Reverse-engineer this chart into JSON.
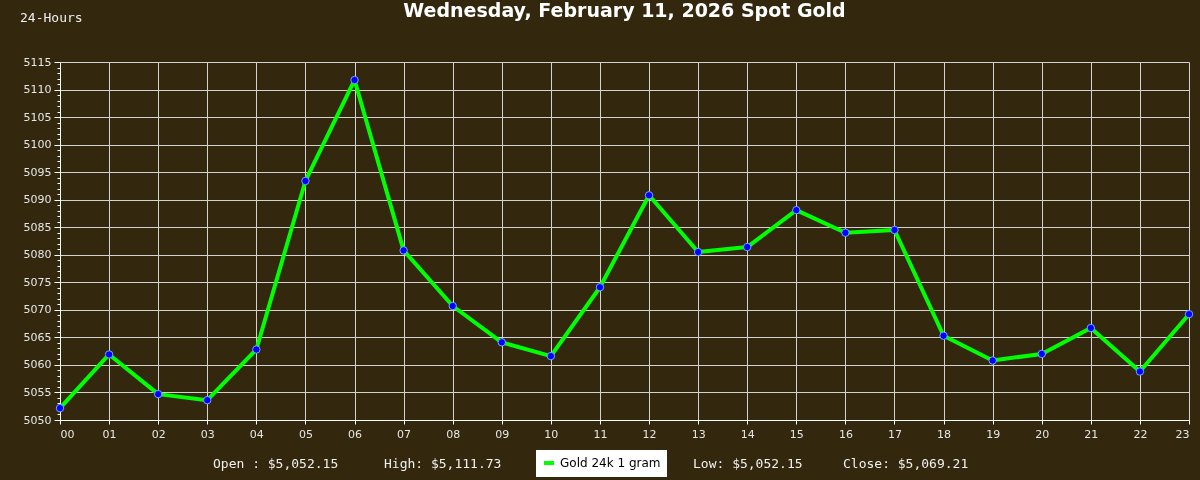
{
  "chart_data": {
    "type": "line",
    "title": "Wednesday, February 11, 2026 Spot Gold",
    "annotations": [
      "24-Hours",
      "Open : $5,052.15",
      "High: $5,111.73",
      "Low: $5,052.15",
      "Close: $5,069.21"
    ],
    "categories": [
      "00",
      "01",
      "02",
      "03",
      "04",
      "05",
      "06",
      "07",
      "08",
      "09",
      "10",
      "11",
      "12",
      "13",
      "14",
      "15",
      "16",
      "17",
      "18",
      "19",
      "20",
      "21",
      "22",
      "23"
    ],
    "series": [
      {
        "name": "Gold 24k 1 gram",
        "color": "#00ff00",
        "values": [
          5052.15,
          5061.9,
          5054.7,
          5053.6,
          5062.8,
          5093.4,
          5111.73,
          5080.8,
          5070.7,
          5064.1,
          5061.6,
          5074.1,
          5090.8,
          5080.5,
          5081.4,
          5088.1,
          5084.0,
          5084.5,
          5065.3,
          5060.8,
          5062.0,
          5066.7,
          5058.8,
          5069.21
        ]
      }
    ],
    "ylim": [
      5050,
      5115
    ],
    "yticks": [
      5050,
      {
        "value": 5051,
        "label": null
      },
      {
        "value": 5052,
        "label": null
      },
      {
        "value": 5053,
        "label": null
      },
      {
        "value": 5054,
        "label": null
      },
      5055,
      {
        "value": 5056,
        "label": null
      },
      {
        "value": 5057,
        "label": null
      },
      {
        "value": 5058,
        "label": null
      },
      {
        "value": 5059,
        "label": null
      },
      5060,
      {
        "value": 5061,
        "label": null
      },
      {
        "value": 5062,
        "label": null
      },
      {
        "value": 5063,
        "label": null
      },
      {
        "value": 5064,
        "label": null
      },
      5065,
      {
        "value": 5066,
        "label": null
      },
      {
        "value": 5067,
        "label": null
      },
      {
        "value": 5068,
        "label": null
      },
      {
        "value": 5069,
        "label": null
      },
      5070,
      {
        "value": 5071,
        "label": null
      },
      {
        "value": 5072,
        "label": null
      },
      {
        "value": 5073,
        "label": null
      },
      {
        "value": 5074,
        "label": null
      },
      5075,
      {
        "value": 5076,
        "label": null
      },
      {
        "value": 5077,
        "label": null
      },
      {
        "value": 5078,
        "label": null
      },
      {
        "value": 5079,
        "label": null
      },
      5080,
      {
        "value": 5081,
        "label": null
      },
      {
        "value": 5082,
        "label": null
      },
      {
        "value": 5083,
        "label": null
      },
      {
        "value": 5084,
        "label": null
      },
      5085,
      {
        "value": 5086,
        "label": null
      },
      {
        "value": 5087,
        "label": null
      },
      {
        "value": 5088,
        "label": null
      },
      {
        "value": 5089,
        "label": null
      },
      5090,
      {
        "value": 5091,
        "label": null
      },
      {
        "value": 5092,
        "label": null
      },
      {
        "value": 5093,
        "label": null
      },
      {
        "value": 5094,
        "label": null
      },
      5095,
      {
        "value": 5096,
        "label": null
      },
      {
        "value": 5097,
        "label": null
      },
      {
        "value": 5098,
        "label": null
      },
      {
        "value": 5099,
        "label": null
      },
      5100,
      {
        "value": 5101,
        "label": null
      },
      {
        "value": 5102,
        "label": null
      },
      {
        "value": 5103,
        "label": null
      },
      {
        "value": 5104,
        "label": null
      },
      5105,
      {
        "value": 5106,
        "label": null
      },
      {
        "value": 5107,
        "label": null
      },
      {
        "value": 5108,
        "label": null
      },
      {
        "value": 5109,
        "label": null
      },
      5110,
      {
        "value": 5111,
        "label": null
      },
      {
        "value": 5112,
        "label": null
      },
      {
        "value": 5113,
        "label": null
      },
      {
        "value": 5114,
        "label": null
      },
      5115
    ],
    "grid": true,
    "legend": "bottom",
    "marker": "circle"
  }
}
